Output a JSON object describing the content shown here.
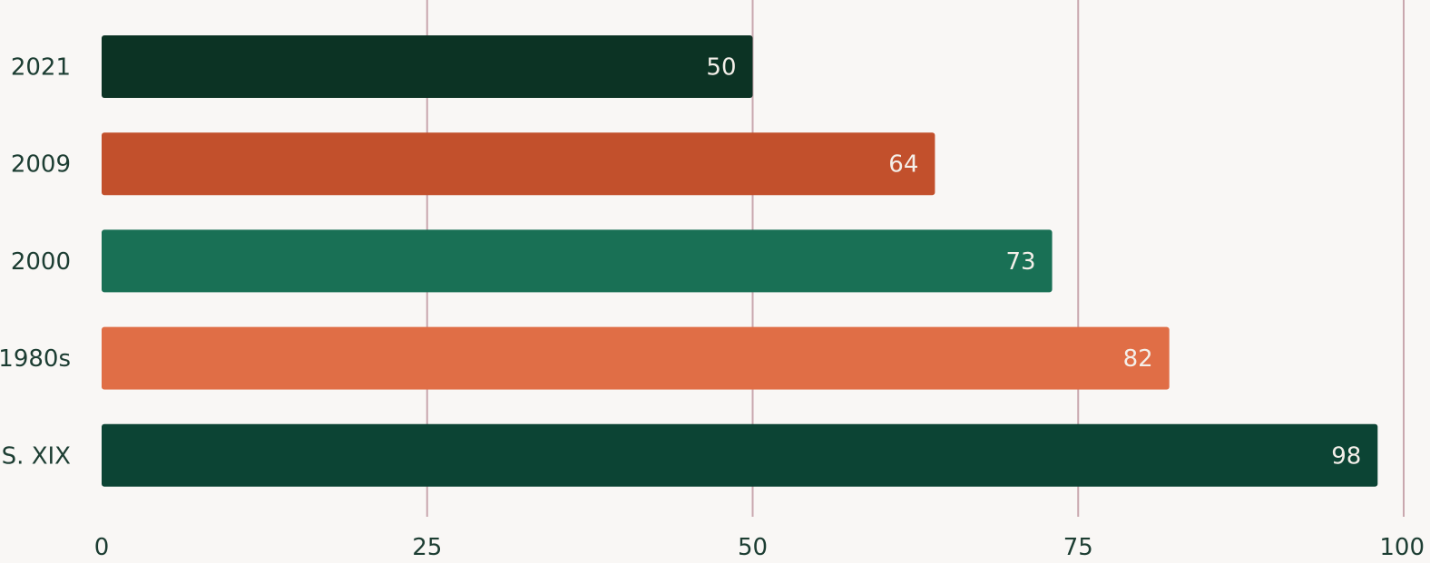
{
  "chart_data": {
    "type": "bar",
    "orientation": "horizontal",
    "categories": [
      "2021",
      "2009",
      "2000",
      "1980s",
      "S. XIX"
    ],
    "values": [
      50,
      64,
      73,
      82,
      98
    ],
    "bar_colors": [
      "#0c3324",
      "#c2502c",
      "#197055",
      "#e06e46",
      "#0c4434"
    ],
    "xlim": [
      0,
      100
    ],
    "xticks": [
      0,
      25,
      50,
      75,
      100
    ],
    "grid": true,
    "data_labels": true,
    "title": "",
    "xlabel": "",
    "ylabel": ""
  }
}
